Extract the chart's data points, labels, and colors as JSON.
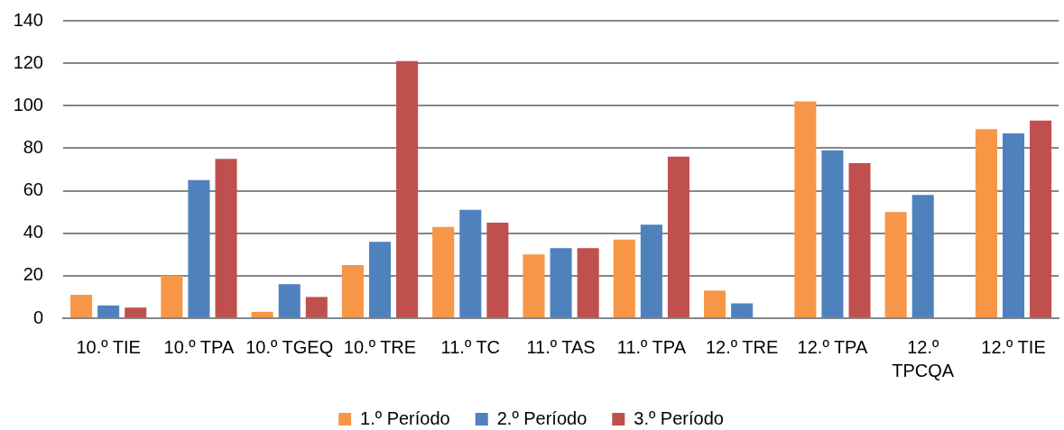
{
  "chart_data": {
    "type": "bar",
    "categories": [
      "10.º TIE",
      "10.º TPA",
      "10.º TGEQ",
      "10.º TRE",
      "11.º TC",
      "11.º TAS",
      "11.º TPA",
      "12.º TRE",
      "12.º TPA",
      "12.º TPCQA",
      "12.º TIE"
    ],
    "series": [
      {
        "name": "1.º Período",
        "color": "#f79646",
        "values": [
          11,
          20,
          3,
          25,
          43,
          30,
          37,
          13,
          102,
          50,
          89
        ]
      },
      {
        "name": "2.º Período",
        "color": "#4f81bd",
        "values": [
          6,
          65,
          16,
          36,
          51,
          33,
          44,
          7,
          79,
          58,
          87
        ]
      },
      {
        "name": "3.º Período",
        "color": "#c0504d",
        "values": [
          5,
          75,
          10,
          121,
          45,
          33,
          76,
          null,
          73,
          null,
          93
        ]
      }
    ],
    "ylim": [
      0,
      140
    ],
    "yticks": [
      0,
      20,
      40,
      60,
      80,
      100,
      120,
      140
    ],
    "grid": "y",
    "legend": "bottom"
  }
}
